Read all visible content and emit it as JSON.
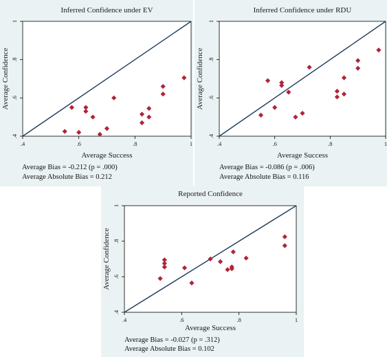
{
  "charts": [
    {
      "title": "Inferred Confidence under EV",
      "stats": [
        "Average Bias = -0.212 (p = .000)",
        "Average Absolute Bias = 0.212"
      ]
    },
    {
      "title": "Inferred Confidence under RDU",
      "stats": [
        "Average Bias = -0.086 (p = .006)",
        "Average Absolute Bias = 0.116"
      ]
    },
    {
      "title": "Reported Confidence",
      "stats": [
        "Average Bias = -0.027 (p = .312)",
        "Average Absolute Bias = 0.102"
      ]
    }
  ],
  "chart_data": [
    {
      "type": "scatter",
      "title": "Inferred Confidence under EV",
      "xlabel": "Average Success",
      "ylabel": "Average Confidence",
      "xlim": [
        0.4,
        1.0
      ],
      "ylim": [
        0.4,
        1.0
      ],
      "xticks": [
        ".4",
        ".6",
        ".8",
        "1"
      ],
      "yticks": [
        ".4",
        ".6",
        ".8",
        "1"
      ],
      "reference_line": "y = x",
      "grid": false,
      "marker_color": "#b0243a",
      "line_color": "#1f3b5a",
      "points": [
        [
          0.55,
          0.425
        ],
        [
          0.575,
          0.55
        ],
        [
          0.6,
          0.42
        ],
        [
          0.625,
          0.55
        ],
        [
          0.625,
          0.53
        ],
        [
          0.65,
          0.5
        ],
        [
          0.675,
          0.41
        ],
        [
          0.7,
          0.44
        ],
        [
          0.725,
          0.6
        ],
        [
          0.825,
          0.515
        ],
        [
          0.825,
          0.47
        ],
        [
          0.85,
          0.545
        ],
        [
          0.85,
          0.5
        ],
        [
          0.9,
          0.66
        ],
        [
          0.9,
          0.62
        ],
        [
          0.975,
          0.705
        ]
      ]
    },
    {
      "type": "scatter",
      "title": "Inferred Confidence under RDU",
      "xlabel": "Average Success",
      "ylabel": "Average Confidence",
      "xlim": [
        0.4,
        1.0
      ],
      "ylim": [
        0.4,
        1.0
      ],
      "xticks": [
        ".4",
        ".6",
        ".8",
        "1"
      ],
      "yticks": [
        ".4",
        ".6",
        ".8",
        "1"
      ],
      "reference_line": "y = x",
      "grid": false,
      "marker_color": "#b0243a",
      "line_color": "#1f3b5a",
      "points": [
        [
          0.55,
          0.51
        ],
        [
          0.575,
          0.69
        ],
        [
          0.6,
          0.55
        ],
        [
          0.625,
          0.68
        ],
        [
          0.625,
          0.665
        ],
        [
          0.65,
          0.63
        ],
        [
          0.675,
          0.5
        ],
        [
          0.7,
          0.52
        ],
        [
          0.725,
          0.76
        ],
        [
          0.825,
          0.635
        ],
        [
          0.825,
          0.605
        ],
        [
          0.85,
          0.705
        ],
        [
          0.85,
          0.62
        ],
        [
          0.9,
          0.795
        ],
        [
          0.9,
          0.755
        ],
        [
          0.975,
          0.85
        ]
      ]
    },
    {
      "type": "scatter",
      "title": "Reported Confidence",
      "xlabel": "Average Success",
      "ylabel": "Average Confidence",
      "xlim": [
        0.4,
        1.0
      ],
      "ylim": [
        0.4,
        1.0
      ],
      "xticks": [
        ".4",
        ".6",
        ".8",
        "1"
      ],
      "yticks": [
        ".4",
        ".6",
        ".8",
        "1"
      ],
      "reference_line": "y = x",
      "grid": false,
      "marker_color": "#b0243a",
      "line_color": "#1f3b5a",
      "points": [
        [
          0.525,
          0.59
        ],
        [
          0.54,
          0.695
        ],
        [
          0.54,
          0.675
        ],
        [
          0.54,
          0.655
        ],
        [
          0.61,
          0.65
        ],
        [
          0.635,
          0.565
        ],
        [
          0.7,
          0.7
        ],
        [
          0.735,
          0.685
        ],
        [
          0.76,
          0.64
        ],
        [
          0.775,
          0.655
        ],
        [
          0.775,
          0.645
        ],
        [
          0.78,
          0.74
        ],
        [
          0.825,
          0.705
        ],
        [
          0.96,
          0.825
        ],
        [
          0.96,
          0.775
        ]
      ]
    }
  ]
}
